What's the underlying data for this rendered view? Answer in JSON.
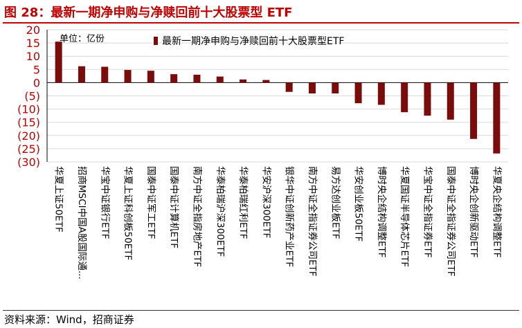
{
  "header": {
    "figure_title": "图 28：最新一期净申购与净赎回前十大股票型 ETF"
  },
  "footer": {
    "source": "资料来源：Wind，招商证券"
  },
  "colors": {
    "bar": "#7b0c0c",
    "title": "#c00000",
    "axis_label": "#c00000",
    "grid": "#d9d9d9"
  },
  "chart_data": {
    "type": "bar",
    "title": "",
    "unit_label": "单位：亿份",
    "xlabel": "",
    "ylabel": "",
    "ylim": [
      -30,
      20
    ],
    "yticks": [
      20,
      15,
      10,
      5,
      0,
      -5,
      -10,
      -15,
      -20,
      -25,
      -30
    ],
    "ytick_labels": [
      "20",
      "15",
      "10",
      "5",
      "0",
      "(5)",
      "(10)",
      "(15)",
      "(20)",
      "(25)",
      "(30)"
    ],
    "legend_position": "top-center",
    "categories": [
      "华夏上证50ETF",
      "招商MSCI中国A股国际通...",
      "华宝中证银行ETF",
      "华夏上证科创板50ETF",
      "国泰中证军工ETF",
      "国泰中证计算机ETF",
      "南方中证全指房地产ETF",
      "华泰柏瑞沪深300ETF",
      "华泰柏瑞红利ETF",
      "华安沪深300ETF",
      "银华中证创新药产业ETF",
      "南方中证全指证券公司ETF",
      "易方达创业板ETF",
      "华安创业板50ETF",
      "博时央企结构调整ETF",
      "华夏国证半导体芯片ETF",
      "华宝中证全指证券ETF",
      "国泰中证全指证券公司ETF",
      "博时央企创新驱动ETF",
      "华夏央企结构调整ETF"
    ],
    "series": [
      {
        "name": "最新一期净申购与净赎回前十大股票型ETF",
        "values": [
          15.5,
          6.2,
          6.0,
          4.8,
          4.5,
          3.2,
          3.0,
          2.3,
          1.2,
          1.0,
          -3.5,
          -4.1,
          -4.1,
          -7.8,
          -8.4,
          -11.2,
          -12.5,
          -14.0,
          -21.3,
          -26.8
        ]
      }
    ]
  }
}
